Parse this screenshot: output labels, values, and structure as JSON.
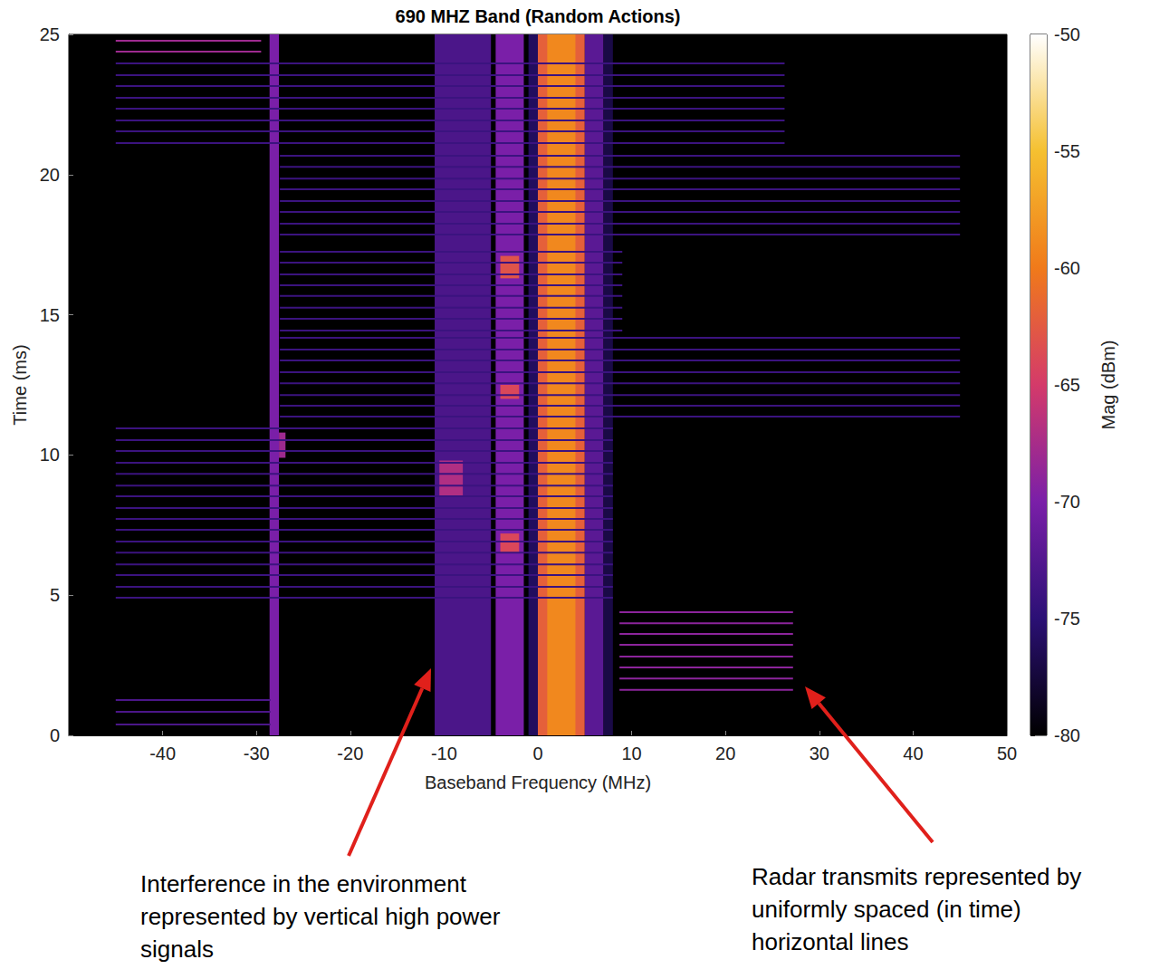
{
  "chart_data": {
    "type": "heatmap",
    "title": "690 MHZ Band (Random Actions)",
    "x_label": "Baseband Frequency (MHz)",
    "y_label": "Time (ms)",
    "xlim": [
      -50,
      50
    ],
    "xticks": [
      -40,
      -30,
      -20,
      -10,
      0,
      10,
      20,
      30,
      40,
      50
    ],
    "ylim": [
      0,
      25
    ],
    "yticks": [
      0,
      5,
      10,
      15,
      20,
      25
    ],
    "grid": false,
    "colorbar": {
      "label": "Mag (dBm)",
      "range": [
        -80,
        -50
      ],
      "ticks": [
        -80,
        -75,
        -70,
        -65,
        -60,
        -55,
        -50
      ]
    },
    "bands": [
      [
        -28.6,
        -27.6,
        0,
        25,
        -70
      ],
      [
        -27.6,
        -26.9,
        9.9,
        10.8,
        -68
      ],
      [
        -11,
        -5,
        0,
        25,
        -73
      ],
      [
        -10.5,
        -8,
        8.5,
        9.8,
        -67
      ],
      [
        -4.5,
        -1.5,
        0,
        25,
        -70
      ],
      [
        -4,
        -2,
        16.3,
        17.1,
        -63
      ],
      [
        -4,
        -2,
        6.5,
        7.2,
        -64
      ],
      [
        -4,
        -2,
        12.0,
        12.5,
        -64
      ],
      [
        -1,
        0,
        0,
        25,
        -76
      ],
      [
        0,
        5,
        0,
        25,
        -62
      ],
      [
        1,
        4,
        0,
        25,
        -59
      ],
      [
        5,
        7,
        0,
        25,
        -72
      ],
      [
        7,
        8,
        0,
        25,
        -77
      ]
    ],
    "pulses": [
      [
        -45,
        -28.5,
        0.39,
        -73
      ],
      [
        -45,
        -28.5,
        0.84,
        -73
      ],
      [
        -45,
        -28.5,
        1.26,
        -73
      ],
      [
        8.7,
        27.2,
        1.62,
        -69
      ],
      [
        8.7,
        27.2,
        2.03,
        -69
      ],
      [
        8.7,
        27.2,
        2.42,
        -69
      ],
      [
        8.7,
        27.2,
        2.81,
        -69
      ],
      [
        8.7,
        27.2,
        3.23,
        -69
      ],
      [
        8.7,
        27.2,
        3.62,
        -69
      ],
      [
        8.7,
        27.2,
        4.0,
        -69
      ],
      [
        8.7,
        27.2,
        4.39,
        -69
      ],
      [
        -45,
        8,
        4.91,
        -74
      ],
      [
        -45,
        8,
        5.3,
        -74
      ],
      [
        -45,
        8,
        5.72,
        -74
      ],
      [
        -45,
        8,
        6.1,
        -74
      ],
      [
        -45,
        8,
        6.52,
        -74
      ],
      [
        -45,
        8,
        6.91,
        -74
      ],
      [
        -45,
        8,
        7.33,
        -74
      ],
      [
        -45,
        8,
        7.72,
        -74
      ],
      [
        -45,
        8,
        8.11,
        -74
      ],
      [
        -45,
        8,
        8.53,
        -74
      ],
      [
        -45,
        8,
        8.91,
        -74
      ],
      [
        -45,
        8,
        9.33,
        -74
      ],
      [
        -45,
        8,
        9.72,
        -74
      ],
      [
        -45,
        8,
        10.14,
        -74
      ],
      [
        -45,
        8,
        10.53,
        -74
      ],
      [
        -45,
        8,
        10.95,
        -74
      ],
      [
        -27.5,
        45,
        11.37,
        -74
      ],
      [
        -27.5,
        45,
        11.76,
        -74
      ],
      [
        -27.5,
        45,
        12.14,
        -74
      ],
      [
        -27.5,
        45,
        12.56,
        -74
      ],
      [
        -27.5,
        45,
        12.95,
        -74
      ],
      [
        -27.5,
        45,
        13.37,
        -74
      ],
      [
        -27.5,
        45,
        13.76,
        -74
      ],
      [
        -27.5,
        45,
        14.18,
        -74
      ],
      [
        -27.5,
        9,
        14.44,
        -74
      ],
      [
        -27.5,
        9,
        14.86,
        -74
      ],
      [
        -27.5,
        9,
        15.25,
        -74
      ],
      [
        -27.5,
        9,
        15.67,
        -74
      ],
      [
        -27.5,
        9,
        16.05,
        -74
      ],
      [
        -27.5,
        9,
        16.44,
        -74
      ],
      [
        -27.5,
        9,
        16.86,
        -74
      ],
      [
        -27.5,
        9,
        17.25,
        -74
      ],
      [
        -27.5,
        45,
        17.86,
        -74
      ],
      [
        -27.5,
        45,
        18.25,
        -74
      ],
      [
        -27.5,
        45,
        18.67,
        -74
      ],
      [
        -27.5,
        45,
        19.06,
        -74
      ],
      [
        -27.5,
        45,
        19.48,
        -74
      ],
      [
        -27.5,
        45,
        19.86,
        -74
      ],
      [
        -27.5,
        45,
        20.28,
        -74
      ],
      [
        -27.5,
        45,
        20.67,
        -74
      ],
      [
        -45,
        26.3,
        21.12,
        -74
      ],
      [
        -45,
        26.3,
        21.54,
        -74
      ],
      [
        -45,
        26.3,
        21.93,
        -74
      ],
      [
        -45,
        26.3,
        22.35,
        -74
      ],
      [
        -45,
        26.3,
        22.74,
        -74
      ],
      [
        -45,
        26.3,
        23.16,
        -74
      ],
      [
        -45,
        26.3,
        23.55,
        -74
      ],
      [
        -45,
        26.3,
        23.97,
        -74
      ],
      [
        -45,
        -29.5,
        24.39,
        -68
      ],
      [
        -45,
        -29.5,
        24.77,
        -68
      ]
    ],
    "annotations": [
      {
        "lines": [
          "Interference in the environment",
          "represented by vertical high power",
          "signals"
        ]
      },
      {
        "lines": [
          "Radar transmits represented by",
          "uniformly spaced (in time)",
          "horizontal lines"
        ]
      }
    ]
  }
}
